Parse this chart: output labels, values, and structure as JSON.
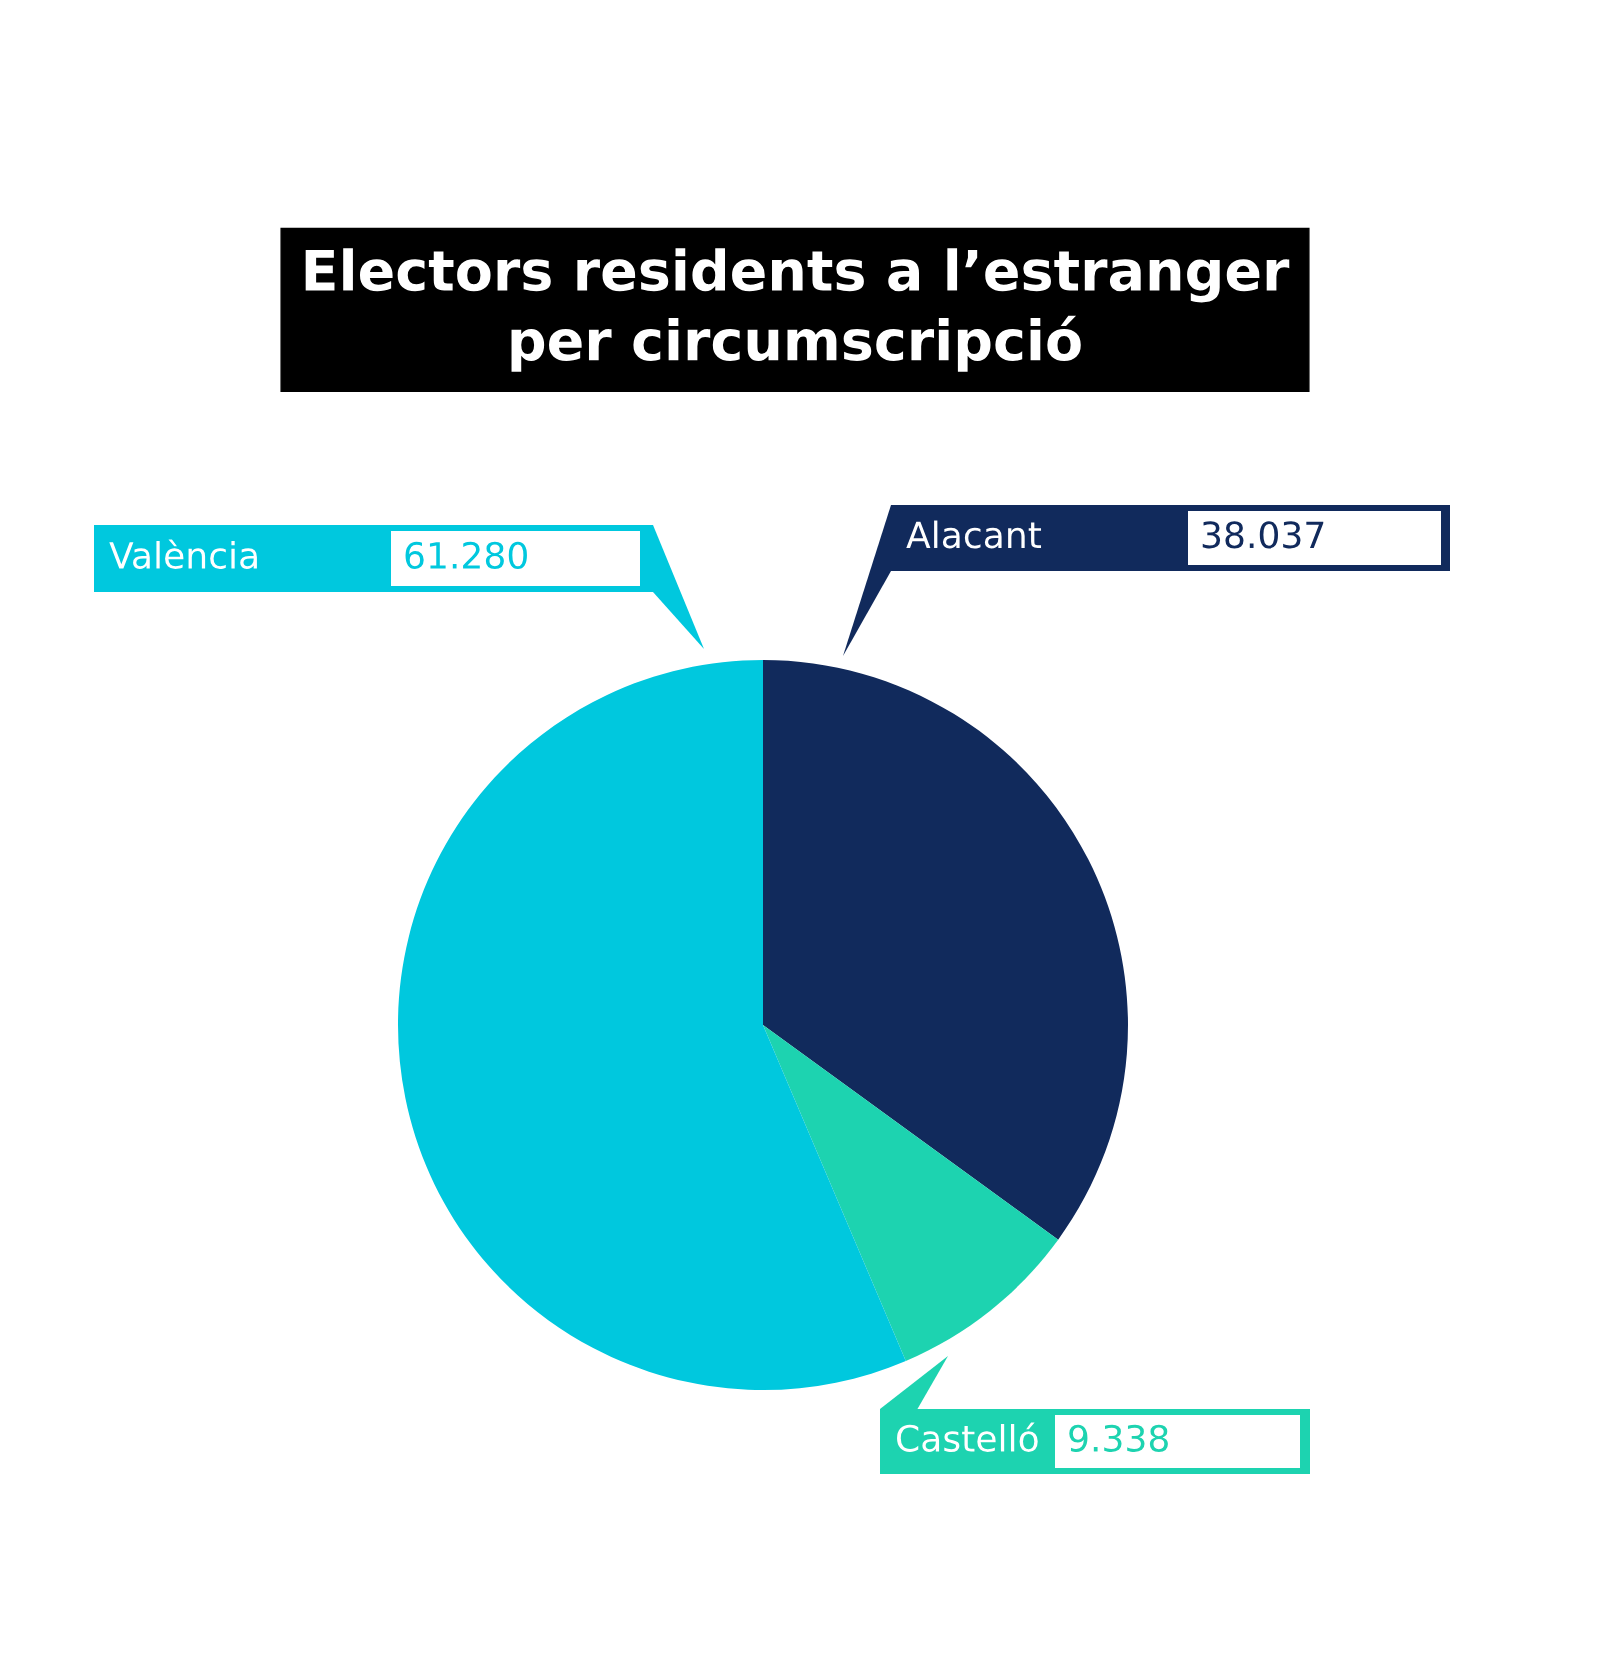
{
  "chart_data": {
    "type": "pie",
    "title": "Electors residents a l’estranger\nper circumscripció",
    "categories": [
      "Alacant",
      "Castelló",
      "València"
    ],
    "values": [
      38037,
      9338,
      61280
    ],
    "value_labels": [
      "38.037",
      "9.338",
      "61.280"
    ],
    "colors": [
      "#112a5c",
      "#1dd3b0",
      "#00c8de"
    ]
  }
}
